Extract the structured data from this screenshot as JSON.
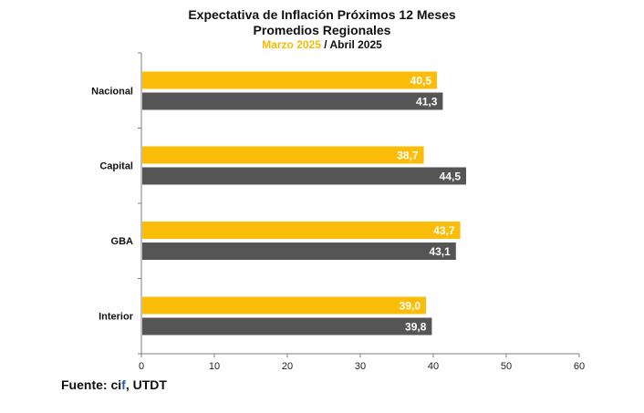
{
  "chart_data": {
    "type": "bar",
    "orientation": "horizontal",
    "title": "Expectativa de Inflación Próximos 12 Meses",
    "subtitle": "Promedios Regionales",
    "period_labels": [
      "Marzo 2025",
      " / Abril 2025"
    ],
    "categories": [
      "Nacional",
      "Capital",
      "GBA",
      "Interior"
    ],
    "series": [
      {
        "name": "Marzo 2025",
        "color": "#fbbd0a",
        "values": [
          40.5,
          38.7,
          43.7,
          39.0
        ],
        "labels": [
          "40,5",
          "38,7",
          "43,7",
          "39,0"
        ]
      },
      {
        "name": "Abril 2025",
        "color": "#555555",
        "values": [
          41.3,
          44.5,
          43.1,
          39.8
        ],
        "labels": [
          "41,3",
          "44,5",
          "43,1",
          "39,8"
        ]
      }
    ],
    "xlim": [
      0,
      60
    ],
    "xticks": [
      "0",
      "10",
      "20",
      "30",
      "40",
      "50",
      "60"
    ],
    "grid": false,
    "legend": "none"
  },
  "source": {
    "prefix": "Fuente: ",
    "cif_c": "ci",
    "cif_f": "f",
    "suffix": ", UTDT"
  }
}
